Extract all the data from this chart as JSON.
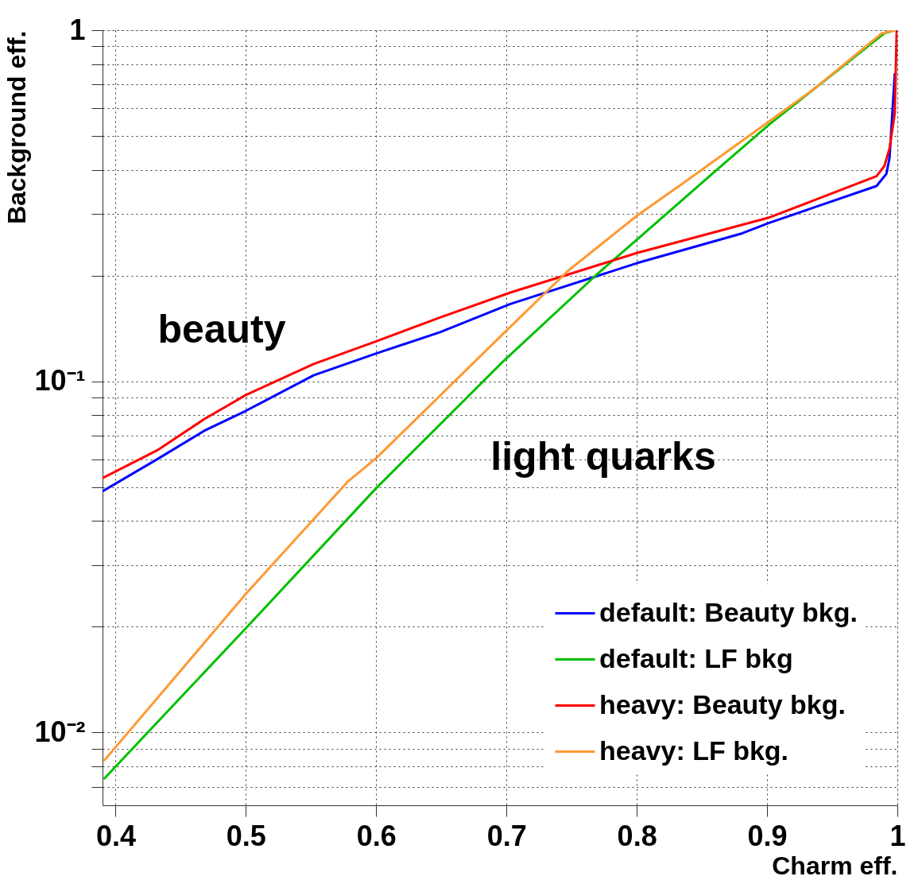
{
  "chart_data": {
    "type": "line",
    "xlabel": "Charm eff.",
    "ylabel": "Background eff.",
    "log": "y",
    "grid": true,
    "legend": "bottom right",
    "line_style": "solid",
    "xlim": [
      0.39,
      1.0
    ],
    "ylim": [
      0.0062,
      1
    ],
    "xticks": [
      {
        "value": 0.4,
        "label": "0.4"
      },
      {
        "value": 0.5,
        "label": "0.5"
      },
      {
        "value": 0.6,
        "label": "0.6"
      },
      {
        "value": 0.7,
        "label": "0.7"
      },
      {
        "value": 0.8,
        "label": "0.8"
      },
      {
        "value": 0.9,
        "label": "0.9"
      },
      1
    ],
    "yticks": [
      {
        "value": 0.007,
        "label": null
      },
      {
        "value": 0.008,
        "label": null
      },
      {
        "value": 0.009,
        "label": null
      },
      {
        "value": 0.01,
        "label": "10⁻²"
      },
      {
        "value": 0.02,
        "label": null
      },
      {
        "value": 0.03,
        "label": null
      },
      {
        "value": 0.04,
        "label": null
      },
      {
        "value": 0.05,
        "label": null
      },
      {
        "value": 0.06,
        "label": null
      },
      {
        "value": 0.07,
        "label": null
      },
      {
        "value": 0.08,
        "label": null
      },
      {
        "value": 0.09,
        "label": null
      },
      {
        "value": 0.1,
        "label": "10⁻¹"
      },
      {
        "value": 0.2,
        "label": null
      },
      {
        "value": 0.3,
        "label": null
      },
      {
        "value": 0.4,
        "label": null
      },
      {
        "value": 0.5,
        "label": null
      },
      {
        "value": 0.6,
        "label": null
      },
      {
        "value": 0.7,
        "label": null
      },
      {
        "value": 0.8,
        "label": null
      },
      {
        "value": 0.9,
        "label": null
      },
      1
    ],
    "annotations": [
      "beauty",
      "light quarks"
    ],
    "series": [
      {
        "name": "default: Beauty bkg.",
        "color": "#0000ff",
        "x": [
          0.39,
          0.432,
          0.468,
          0.5,
          0.552,
          0.6,
          0.649,
          0.703,
          0.8,
          0.881,
          0.902,
          0.984,
          0.9916,
          0.994,
          0.998
        ],
        "values": [
          0.0486,
          0.06,
          0.0723,
          0.0824,
          0.104,
          0.12,
          0.138,
          0.166,
          0.217,
          0.264,
          0.283,
          0.36,
          0.39,
          0.433,
          0.75
        ]
      },
      {
        "name": "default: LF bkg",
        "color": "#00c000",
        "x": [
          0.3916,
          0.5,
          0.6,
          0.697,
          0.769,
          0.8,
          0.86,
          0.902,
          0.938,
          0.99,
          0.998
        ],
        "values": [
          0.0074,
          0.0198,
          0.0496,
          0.1135,
          0.201,
          0.253,
          0.396,
          0.54,
          0.689,
          0.98,
          1
        ]
      },
      {
        "name": "heavy: Beauty bkg.",
        "color": "#ff0000",
        "x": [
          0.39,
          0.432,
          0.468,
          0.5,
          0.552,
          0.6,
          0.649,
          0.703,
          0.8,
          0.902,
          0.984,
          0.99,
          0.994,
          0.998,
          0.9995
        ],
        "values": [
          0.053,
          0.0636,
          0.078,
          0.0914,
          0.112,
          0.13,
          0.152,
          0.179,
          0.232,
          0.293,
          0.384,
          0.41,
          0.46,
          0.58,
          1
        ]
      },
      {
        "name": "heavy: LF bkg.",
        "color": "#ff9933",
        "x": [
          0.3916,
          0.5,
          0.578,
          0.6,
          0.697,
          0.747,
          0.8,
          0.837,
          0.902,
          0.938,
          0.988,
          0.998
        ],
        "values": [
          0.00834,
          0.0248,
          0.0517,
          0.0604,
          0.136,
          0.206,
          0.296,
          0.37,
          0.551,
          0.689,
          0.98,
          1
        ]
      }
    ]
  }
}
